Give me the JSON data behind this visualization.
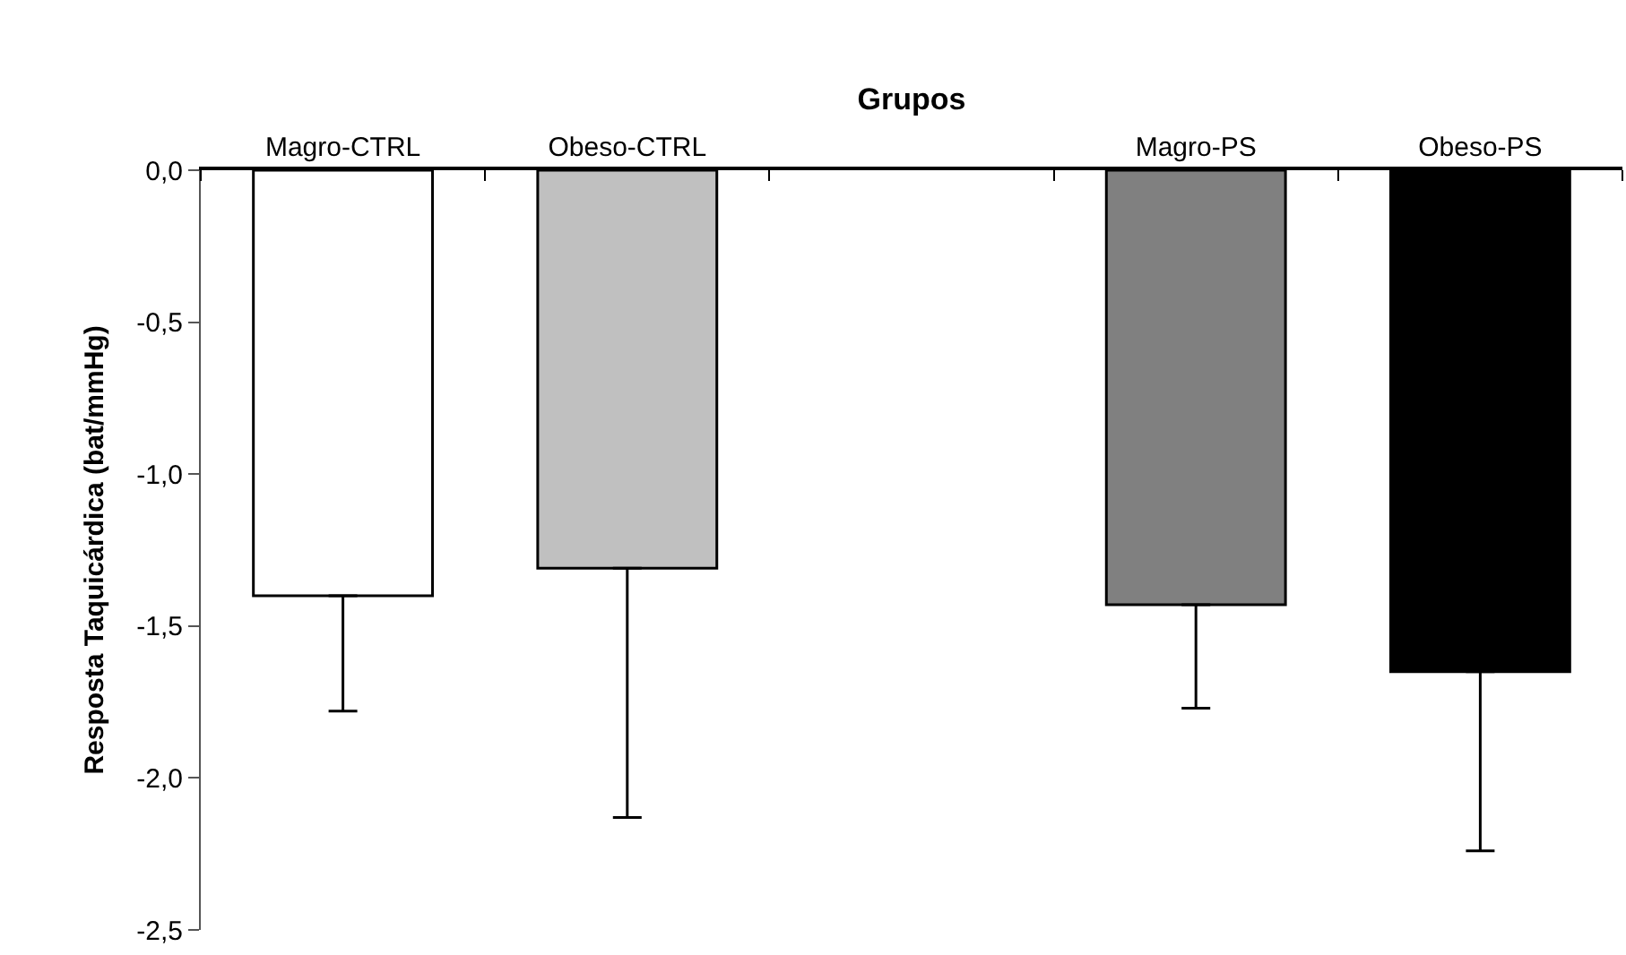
{
  "chart_data": {
    "type": "bar",
    "xlabel": "Grupos",
    "ylabel": "Resposta Taquicárdica (bat/mmHg)",
    "categories": [
      "Magro-CTRL",
      "Obeso-CTRL",
      null,
      "Magro-PS",
      "Obeso-PS"
    ],
    "values": [
      -1.4,
      -1.31,
      null,
      -1.43,
      -1.65
    ],
    "colors": [
      "#ffffff",
      "#c0c0c0",
      null,
      "#808080",
      "#000000"
    ],
    "errors": [
      [
        -1.78,
        -1.4
      ],
      [
        -2.13,
        -1.31
      ],
      null,
      [
        -1.77,
        -1.43
      ],
      [
        -2.24,
        -1.65
      ]
    ],
    "ylim": [
      -2.5,
      0
    ],
    "yticks": [
      {
        "value": 0,
        "label": "0,0"
      },
      {
        "value": -0.5,
        "label": "-0,5"
      },
      {
        "value": -1.0,
        "label": "-1,0"
      },
      {
        "value": -1.5,
        "label": "-1,5"
      },
      {
        "value": -2.0,
        "label": "-2,0"
      },
      {
        "value": -2.5,
        "label": "-2,5"
      }
    ]
  }
}
